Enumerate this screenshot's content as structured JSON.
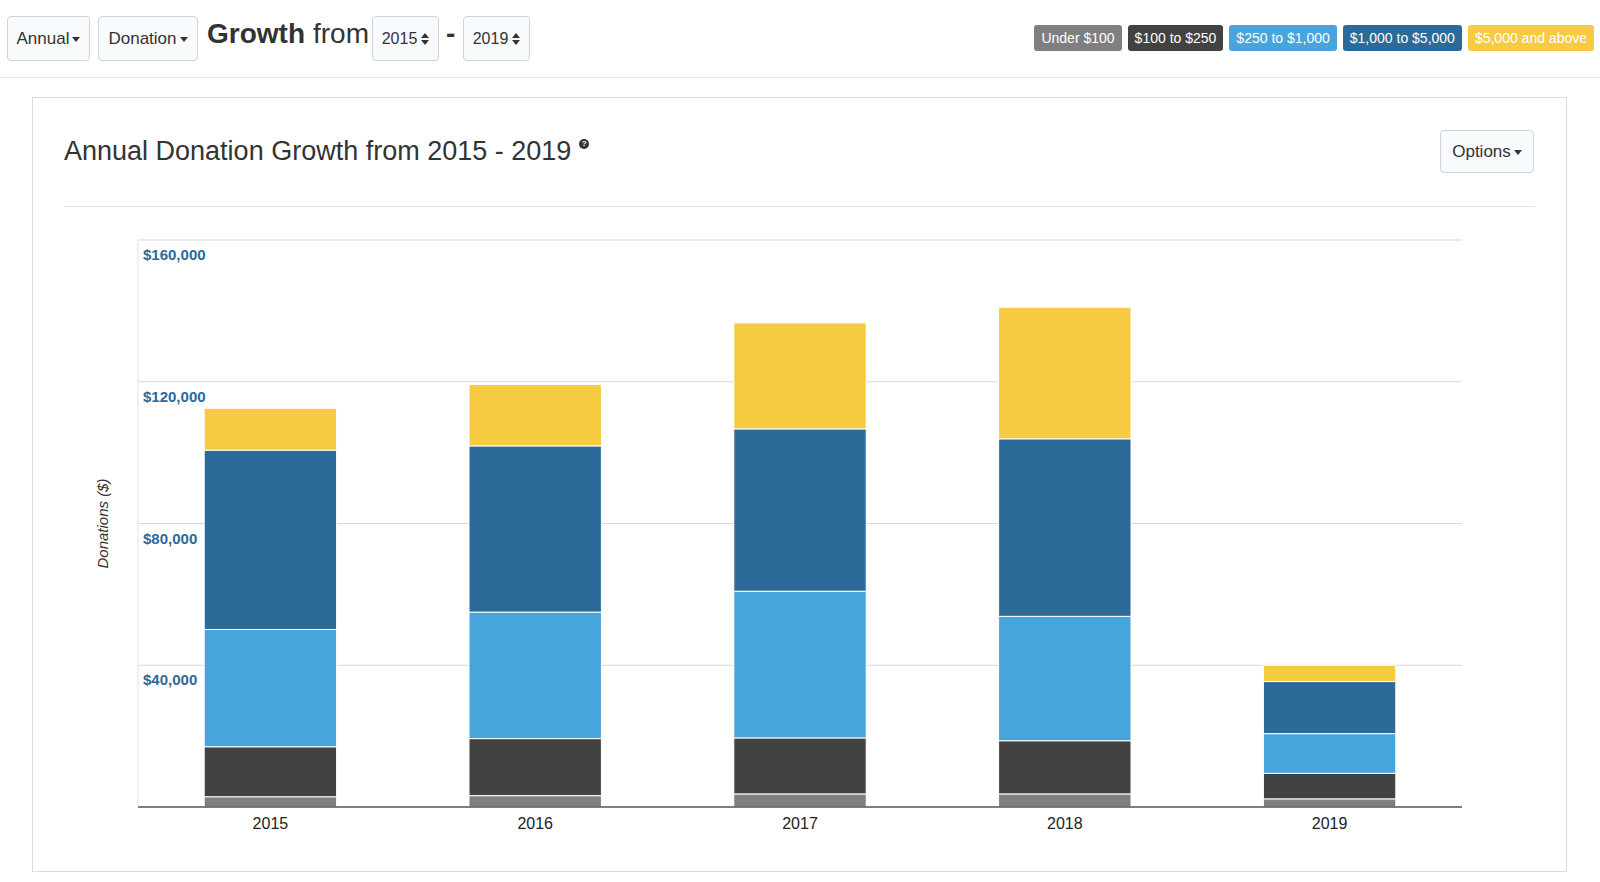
{
  "toolbar": {
    "period": "Annual",
    "metric": "Donation",
    "heading": "Growth",
    "heading_from": "from",
    "start": "2015",
    "separator": "-",
    "end": "2019"
  },
  "card": {
    "help": "?",
    "options": "Options"
  },
  "chart_data": {
    "type": "bar",
    "title": "Annual Donation Growth from 2015 - 2019",
    "y_label": "Donations ($)",
    "categories": [
      "2015",
      "2016",
      "2017",
      "2018",
      "2019"
    ],
    "series": [
      {
        "name": "Under $100",
        "color": "#7f7f7f",
        "values": [
          2900,
          3200,
          3700,
          3700,
          2300
        ]
      },
      {
        "name": "$100 to $250",
        "color": "#424242",
        "values": [
          14100,
          16100,
          15800,
          15000,
          7200
        ]
      },
      {
        "name": "$250 to $1,000",
        "color": "#48a5dc",
        "values": [
          33100,
          35700,
          41400,
          35100,
          11200
        ]
      },
      {
        "name": "$1,000 to $5,000",
        "color": "#2c6b99",
        "values": [
          50600,
          46900,
          45800,
          50100,
          14700
        ]
      },
      {
        "name": "$5,000 and above",
        "color": "#f6cb42",
        "values": [
          11800,
          17300,
          29900,
          37100,
          4600
        ]
      }
    ],
    "ylim": [
      0,
      160000
    ],
    "yticks": [
      {
        "value": 40000,
        "label": "$40,000"
      },
      {
        "value": 80000,
        "label": "$80,000"
      },
      {
        "value": 120000,
        "label": "$120,000"
      },
      {
        "value": 160000,
        "label": "$160,000"
      }
    ],
    "stacked": true,
    "grid": true,
    "legend": "top-right"
  }
}
